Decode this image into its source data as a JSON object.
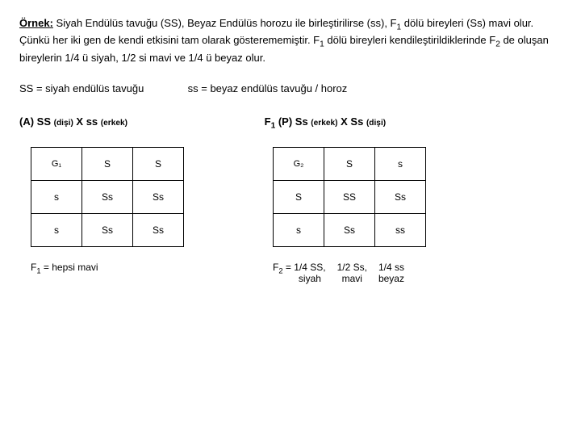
{
  "intro": {
    "label": "Örnek:",
    "body1": "Siyah Endülüs tavuğu (SS), Beyaz Endülüs horozu ile birleştirilirse (ss), F",
    "body1b": "dölü bireyleri (Ss) mavi olur. Çünkü her iki gen de kendi etkisini tam olarak gösterememiştir. F",
    "body1c": " dölü bireyleri kendileştirildiklerinde F",
    "body1d": " de oluşan bireylerin 1/4 ü siyah, 1/2 si mavi ve 1/4 ü beyaz olur.",
    "sub1": "1",
    "sub2": "1",
    "sub3": "2"
  },
  "legend": {
    "left": "SS = siyah endülüs tavuğu",
    "right": "ss = beyaz endülüs tavuğu / horoz"
  },
  "crossA": {
    "prefix": "(A)  SS ",
    "subL": "(dişi)",
    "mid": "  X   ss ",
    "subR": "(erkek)"
  },
  "crossB": {
    "prefix": "F",
    "sub1": "1",
    "p": " (P)   Ss ",
    "subL": "(erkek)",
    "mid": "  X  Ss ",
    "subR": "(dişi)"
  },
  "table1": {
    "corner": "G₁",
    "h1": "S",
    "h2": "S",
    "r1": "s",
    "c11": "Ss",
    "c12": "Ss",
    "r2": "s",
    "c21": "Ss",
    "c22": "Ss"
  },
  "table2": {
    "corner": "G₂",
    "h1": "S",
    "h2": "s",
    "r1": "S",
    "c11": "SS",
    "c12": "Ss",
    "r2": "s",
    "c21": "Ss",
    "c22": "ss"
  },
  "footer1": {
    "f": "F",
    "sub": "1",
    "rest": " = hepsi mavi"
  },
  "footer2": {
    "f": "F",
    "sub": "2",
    "eq": " = ",
    "c1a": "1/4 SS,",
    "c1b": "siyah",
    "c2a": "1/2 Ss,",
    "c2b": "mavi",
    "c3a": "1/4 ss",
    "c3b": "beyaz"
  }
}
